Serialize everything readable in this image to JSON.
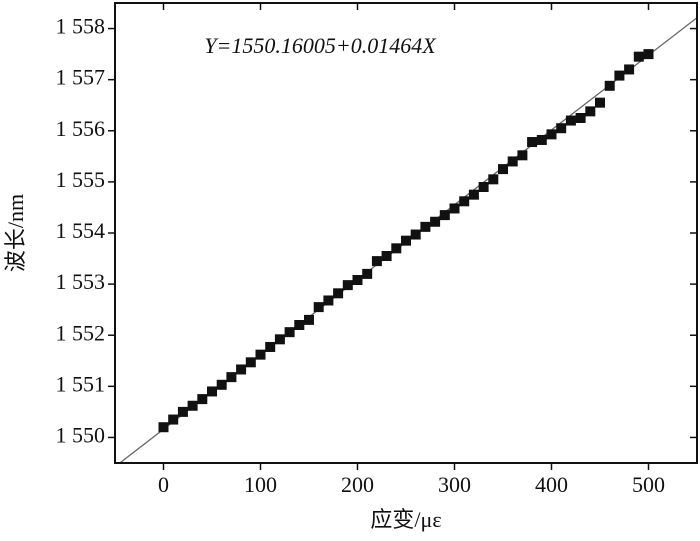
{
  "chart_data": {
    "type": "scatter",
    "annotation": "Y=1550.16005+0.01464X",
    "x_label": "应变/με",
    "y_label": "波长/nm",
    "x": [
      0,
      10,
      20,
      30,
      40,
      50,
      60,
      70,
      80,
      90,
      100,
      110,
      120,
      130,
      140,
      150,
      160,
      170,
      180,
      190,
      200,
      210,
      220,
      230,
      240,
      250,
      260,
      270,
      280,
      290,
      300,
      310,
      320,
      330,
      340,
      350,
      360,
      370,
      380,
      390,
      400,
      410,
      420,
      430,
      440,
      450,
      460,
      470,
      480,
      490,
      500
    ],
    "values": [
      1550.2,
      1550.35,
      1550.5,
      1550.62,
      1550.75,
      1550.9,
      1551.03,
      1551.18,
      1551.33,
      1551.47,
      1551.62,
      1551.77,
      1551.92,
      1552.06,
      1552.2,
      1552.3,
      1552.55,
      1552.68,
      1552.82,
      1552.98,
      1553.08,
      1553.2,
      1553.45,
      1553.55,
      1553.7,
      1553.85,
      1553.97,
      1554.12,
      1554.22,
      1554.35,
      1554.48,
      1554.62,
      1554.75,
      1554.9,
      1555.05,
      1555.25,
      1555.4,
      1555.52,
      1555.78,
      1555.82,
      1555.93,
      1556.05,
      1556.2,
      1556.25,
      1556.38,
      1556.55,
      1556.88,
      1557.08,
      1557.2,
      1557.45,
      1557.5
    ],
    "color": "#111111",
    "fit": {
      "intercept": 1550.16005,
      "slope": 0.01464,
      "color": "#666666"
    },
    "xlim": [
      -50,
      550
    ],
    "xticks": [
      0,
      100,
      200,
      300,
      400,
      500
    ],
    "ylim": [
      1549.5,
      1558.5
    ],
    "yticks": [
      {
        "value": 1550,
        "label": "1 550"
      },
      {
        "value": 1551,
        "label": "1 551"
      },
      {
        "value": 1552,
        "label": "1 552"
      },
      {
        "value": 1553,
        "label": "1 553"
      },
      {
        "value": 1554,
        "label": "1 554"
      },
      {
        "value": 1555,
        "label": "1 555"
      },
      {
        "value": 1556,
        "label": "1 556"
      },
      {
        "value": 1557,
        "label": "1 557"
      },
      {
        "value": 1558,
        "label": "1 558"
      }
    ]
  }
}
